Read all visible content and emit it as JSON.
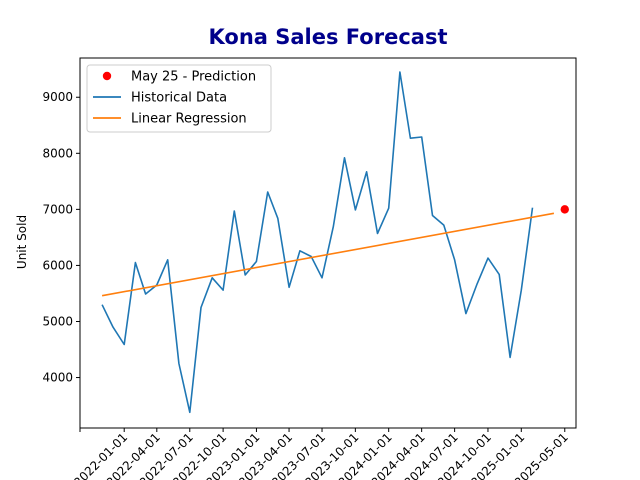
{
  "chart_data": {
    "type": "line",
    "title": "Kona Sales Forecast",
    "title_color": "#00008B",
    "xlabel": "",
    "ylabel": "Unit Sold",
    "ylim": [
      3100,
      9700
    ],
    "xlim": [
      "2021-09-01",
      "2025-06-01"
    ],
    "yticks": [
      4000,
      5000,
      6000,
      7000,
      8000,
      9000
    ],
    "xticks": [
      "2021-09-01",
      "2022-01-01",
      "2022-04-01",
      "2022-07-01",
      "2022-10-01",
      "2023-01-01",
      "2023-04-01",
      "2023-07-01",
      "2023-10-01",
      "2024-01-01",
      "2024-04-01",
      "2024-07-01",
      "2024-10-01",
      "2025-01-01",
      "2025-05-01"
    ],
    "xtick_labels": [
      "",
      "2022-01-01",
      "2022-04-01",
      "2022-07-01",
      "2022-10-01",
      "2023-01-01",
      "2023-04-01",
      "2023-07-01",
      "2023-10-01",
      "2024-01-01",
      "2024-04-01",
      "2024-07-01",
      "2024-10-01",
      "2025-01-01",
      "2025-05-01"
    ],
    "grid": false,
    "legend_position": "upper left",
    "series": [
      {
        "name": "Historical Data",
        "color": "#1f77b4",
        "kind": "line",
        "x": [
          "2021-11-01",
          "2021-12-01",
          "2022-01-01",
          "2022-02-01",
          "2022-03-01",
          "2022-04-01",
          "2022-05-01",
          "2022-06-01",
          "2022-07-01",
          "2022-08-01",
          "2022-09-01",
          "2022-10-01",
          "2022-11-01",
          "2022-12-01",
          "2023-01-01",
          "2023-02-01",
          "2023-03-01",
          "2023-04-01",
          "2023-05-01",
          "2023-06-01",
          "2023-07-01",
          "2023-08-01",
          "2023-09-01",
          "2023-10-01",
          "2023-11-01",
          "2023-12-01",
          "2024-01-01",
          "2024-02-01",
          "2024-03-01",
          "2024-04-01",
          "2024-05-01",
          "2024-06-01",
          "2024-07-01",
          "2024-08-01",
          "2024-09-01",
          "2024-10-01",
          "2024-11-01",
          "2024-12-01",
          "2025-01-01",
          "2025-02-01",
          "2025-03-01",
          "2025-04-01"
        ],
        "y": [
          5300,
          4900,
          4590,
          6050,
          5490,
          5650,
          6100,
          4250,
          3380,
          5250,
          5780,
          5560,
          6970,
          5830,
          6070,
          7310,
          6840,
          5610,
          6260,
          6160,
          5780,
          6690,
          7920,
          6990,
          7670,
          6570,
          7020,
          9450,
          8270,
          8290,
          6890,
          6720,
          6100,
          5140,
          5670,
          6130,
          5840,
          4360,
          5560,
          7030,
          null,
          null
        ]
      },
      {
        "name": "Linear Regression",
        "color": "#ff7f0e",
        "kind": "line",
        "x": [
          "2021-11-01",
          "2025-04-01"
        ],
        "y": [
          5460,
          6930
        ]
      },
      {
        "name": "May 25 - Prediction",
        "color": "#ff0000",
        "kind": "point",
        "x": [
          "2025-05-01"
        ],
        "y": [
          7000
        ]
      }
    ]
  }
}
